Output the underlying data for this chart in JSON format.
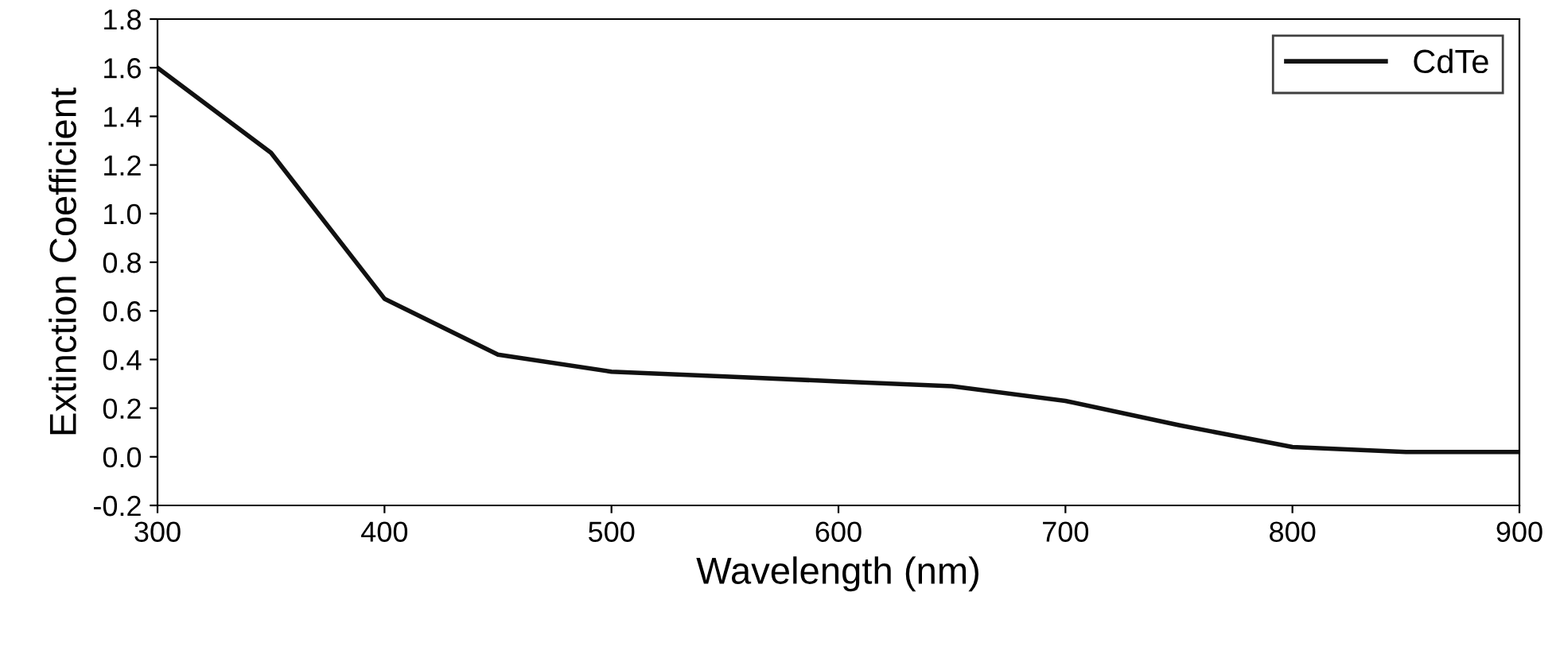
{
  "chart_data": {
    "type": "line",
    "xlabel": "Wavelength (nm)",
    "ylabel": "Extinction Coefficient",
    "x": [
      300,
      350,
      400,
      450,
      500,
      550,
      600,
      650,
      700,
      750,
      800,
      850,
      900
    ],
    "series": [
      {
        "name": "CdTe",
        "color": "#111111",
        "values": [
          1.6,
          1.25,
          0.65,
          0.42,
          0.35,
          0.33,
          0.31,
          0.29,
          0.23,
          0.13,
          0.04,
          0.02,
          0.02
        ]
      }
    ],
    "xlim": [
      300,
      900
    ],
    "xticks": [
      300,
      400,
      500,
      600,
      700,
      800,
      900
    ],
    "ylim": [
      -0.2,
      1.8
    ],
    "yticks": [
      {
        "value": -0.2,
        "label": "-0.2"
      },
      {
        "value": 0.0,
        "label": "0.0"
      },
      {
        "value": 0.2,
        "label": "0.2"
      },
      {
        "value": 0.4,
        "label": "0.4"
      },
      {
        "value": 0.6,
        "label": "0.6"
      },
      {
        "value": 0.8,
        "label": "0.8"
      },
      {
        "value": 1.0,
        "label": "1.0"
      },
      {
        "value": 1.2,
        "label": "1.2"
      },
      {
        "value": 1.4,
        "label": "1.4"
      },
      {
        "value": 1.6,
        "label": "1.6"
      },
      {
        "value": 1.8,
        "label": "1.8"
      }
    ],
    "legend": "top right",
    "grid": false,
    "line_style": "solid"
  }
}
